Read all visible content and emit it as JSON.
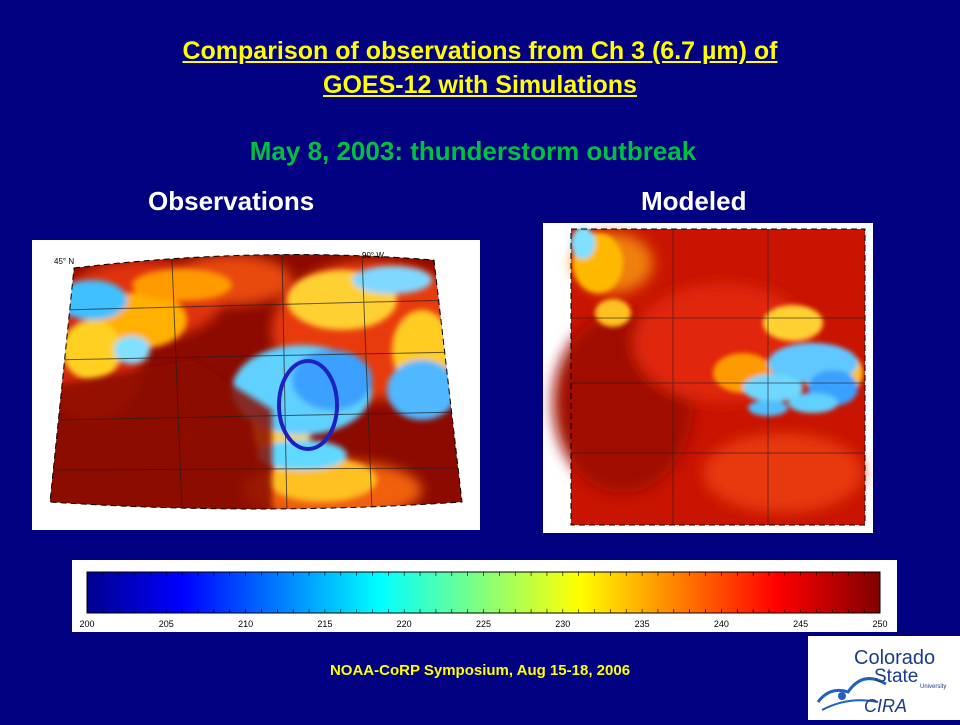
{
  "slide": {
    "title_line1": "Comparison of observations from Ch 3 (6.7 µm) of",
    "title_line2": "GOES-12 with Simulations",
    "subtitle": "May 8, 2003: thunderstorm outbreak",
    "obs_label": "Observations",
    "mod_label": "Modeled",
    "footer": "NOAA-CoRP Symposium, Aug 15-18, 2006"
  },
  "obs_map": {
    "lat_label": "45° N",
    "lon_label": "90° W"
  },
  "colorbar": {
    "ticks": [
      "200",
      "205",
      "210",
      "215",
      "220",
      "225",
      "230",
      "235",
      "240",
      "245",
      "250"
    ]
  },
  "logo": {
    "line1": "Colorado",
    "line2": "State",
    "line3": "University",
    "line4": "CIRA"
  },
  "colors": {
    "background": "#000080",
    "title": "#ffff00",
    "subtitle": "#00c040",
    "ellipse": "#2020c0"
  }
}
